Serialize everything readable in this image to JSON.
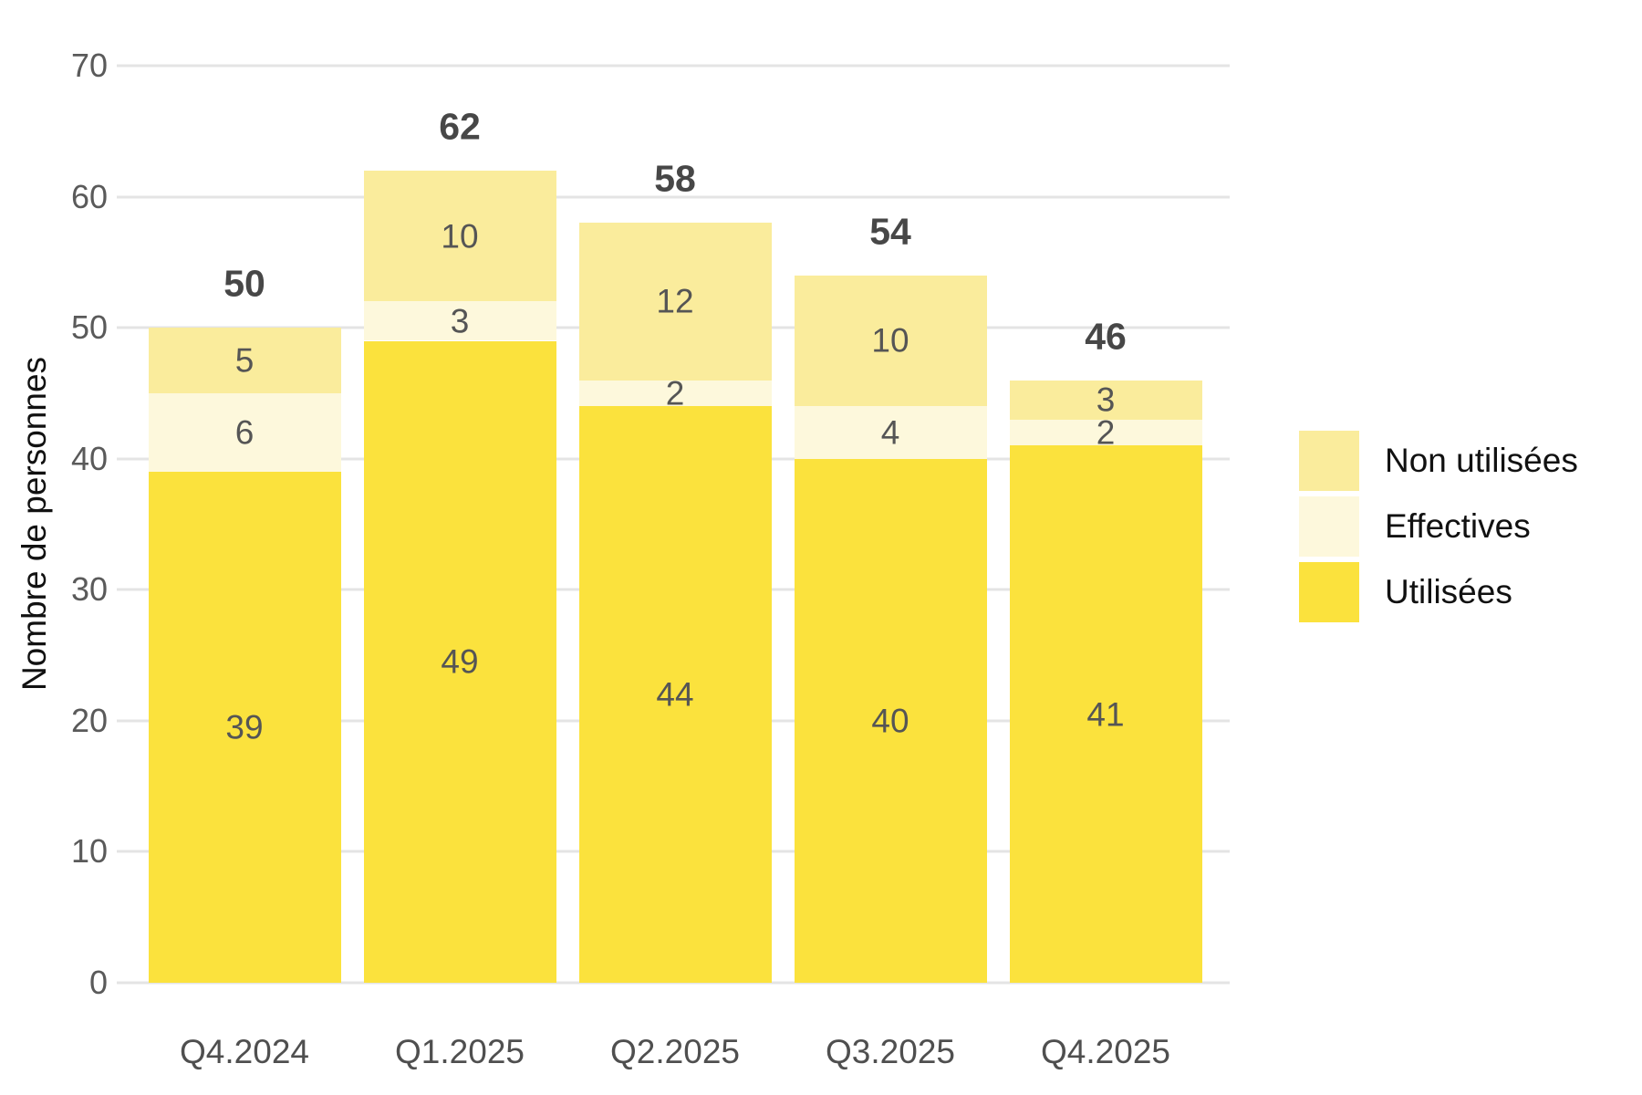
{
  "chart_data": {
    "type": "bar",
    "stacked": true,
    "title": "",
    "xlabel": "",
    "ylabel": "Nombre de personnes",
    "ylim": [
      0,
      70
    ],
    "yticks": [
      0,
      10,
      20,
      30,
      40,
      50,
      60,
      70
    ],
    "grid": true,
    "legend_position": "right",
    "categories": [
      "Q4.2024",
      "Q1.2025",
      "Q2.2025",
      "Q3.2025",
      "Q4.2025"
    ],
    "series": [
      {
        "name": "Utilisées",
        "color": "#FBE23D",
        "values": [
          39,
          49,
          44,
          40,
          41
        ]
      },
      {
        "name": "Effectives",
        "color": "#FDF8DC",
        "values": [
          6,
          3,
          2,
          4,
          2
        ]
      },
      {
        "name": "Non utilisées",
        "color": "#FAEC9C",
        "values": [
          5,
          10,
          12,
          10,
          3
        ]
      }
    ],
    "totals": [
      50,
      62,
      58,
      54,
      46
    ],
    "legend": {
      "items": [
        {
          "label": "Non utilisées",
          "color": "#FAEC9C"
        },
        {
          "label": "Effectives",
          "color": "#FDF8DC"
        },
        {
          "label": "Utilisées",
          "color": "#FBE23D"
        }
      ]
    }
  },
  "style": {
    "background": "#FFFFFF",
    "grid_color": "#E4E4E4",
    "tick_label_color": "#5A5A5A",
    "x_label_color": "#4F4F4F",
    "segment_label_color": "#555555",
    "total_label_color": "#474747",
    "axis_title_color": "#111111",
    "legend_text_color": "#111111"
  }
}
